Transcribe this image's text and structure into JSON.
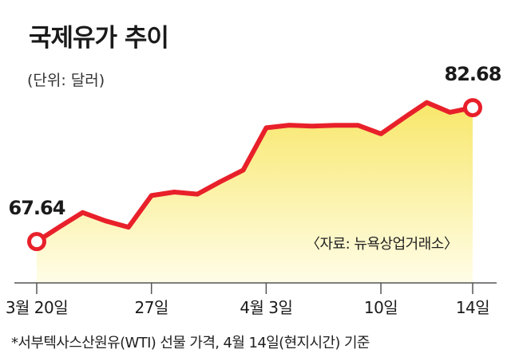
{
  "title": "국제유가 추이",
  "unit": "(단위: 달러)",
  "source": "〈자료: 뉴욕상업거래소〉",
  "footnote": "*서부텍사스산원유(WTI) 선물 가격, 4월 14일(현지시간) 기준",
  "colors": {
    "line": "#e8202a",
    "fill_top": "#f8e76a",
    "fill_bottom": "#fffde8"
  },
  "chart_data": {
    "type": "area",
    "title": "국제유가 추이",
    "ylabel": "(단위: 달러)",
    "x_tick_labels": [
      "3월 20일",
      "27일",
      "4월 3일",
      "10일",
      "14일"
    ],
    "x": [
      "3월 20일",
      "3월 21일",
      "3월 22일",
      "3월 23일",
      "3월 24일",
      "3월 27일",
      "3월 28일",
      "3월 29일",
      "3월 30일",
      "3월 31일",
      "4월 3일",
      "4월 4일",
      "4월 5일",
      "4월 6일",
      "4월 7일",
      "4월 10일",
      "4월 11일",
      "4월 12일",
      "4월 13일",
      "4월 14일"
    ],
    "values": [
      67.64,
      69.3,
      70.9,
      69.96,
      69.26,
      72.81,
      73.2,
      72.97,
      74.37,
      75.67,
      80.42,
      80.71,
      80.61,
      80.7,
      80.7,
      79.74,
      81.53,
      83.26,
      82.16,
      82.68
    ],
    "annotations": [
      {
        "index": 0,
        "label": "67.64"
      },
      {
        "index": 19,
        "label": "82.68"
      }
    ],
    "ylim": [
      63,
      86
    ],
    "grid": false,
    "legend": "none"
  }
}
